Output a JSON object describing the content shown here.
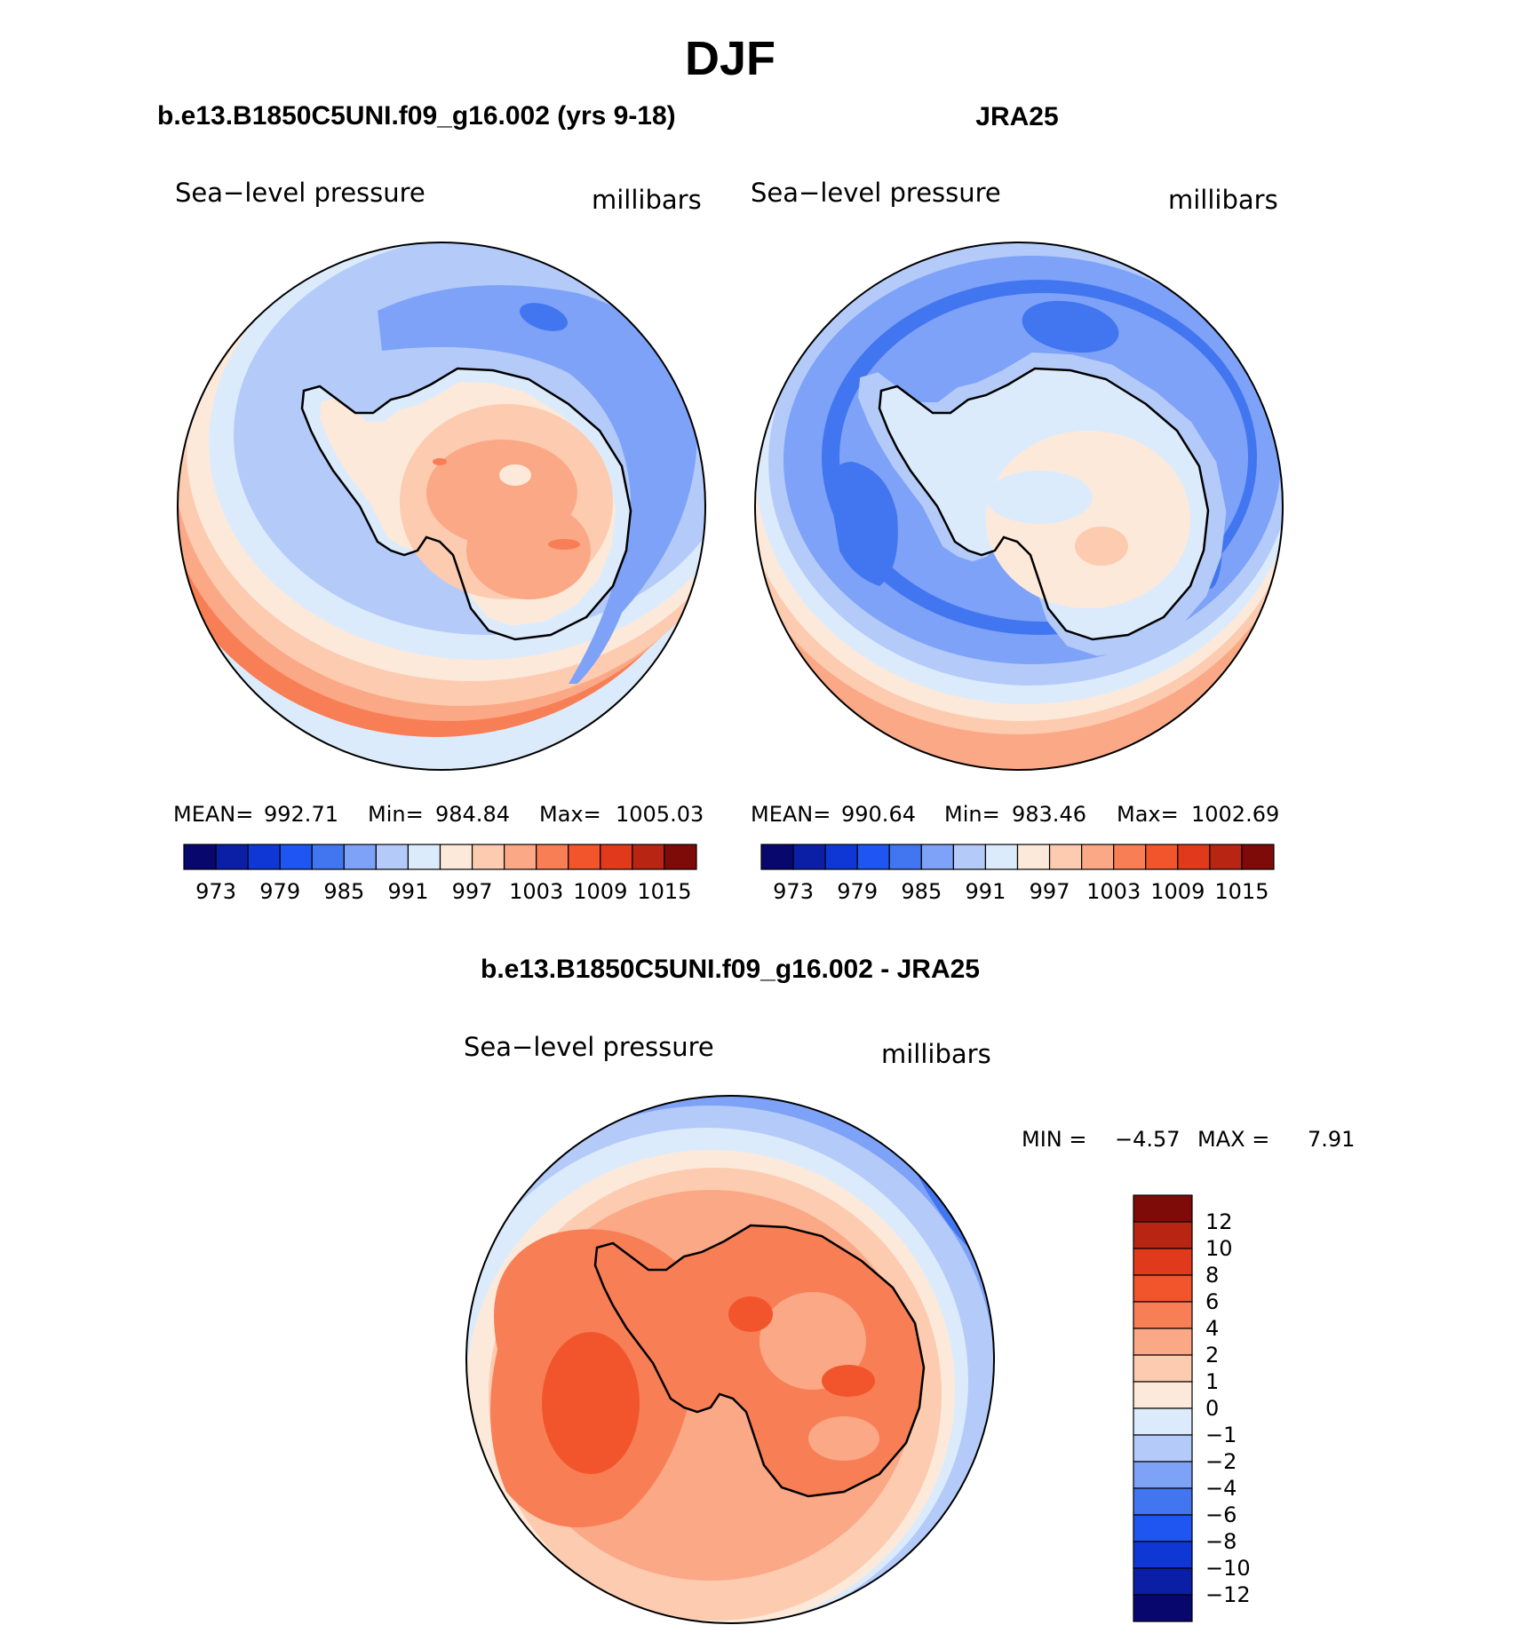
{
  "main_title": "DJF",
  "panels": [
    {
      "id": "model",
      "header": "b.e13.B1850C5UNI.f09_g16.002 (yrs 9-18)",
      "variable": "Sea−level pressure",
      "units": "millibars",
      "stats": {
        "mean_label": "MEAN=",
        "mean": "992.71",
        "min_label": "Min=",
        "min": "984.84",
        "max_label": "Max=",
        "max": "1005.03"
      }
    },
    {
      "id": "obs",
      "header": "JRA25",
      "variable": "Sea−level pressure",
      "units": "millibars",
      "stats": {
        "mean_label": "MEAN=",
        "mean": "990.64",
        "min_label": "Min=",
        "min": "983.46",
        "max_label": "Max=",
        "max": "1002.69"
      }
    }
  ],
  "colorbar_abs": {
    "colors": [
      "#08076e",
      "#0a1fa6",
      "#0f37d6",
      "#1f55f0",
      "#4276f0",
      "#7ea2f7",
      "#b4cbfa",
      "#dcebfb",
      "#fde9da",
      "#fccbb0",
      "#fba886",
      "#f87e55",
      "#f2552b",
      "#e0391c",
      "#b82613",
      "#7f0b08"
    ],
    "labels": [
      "973",
      "979",
      "985",
      "991",
      "997",
      "1003",
      "1009",
      "1015"
    ]
  },
  "diff": {
    "header": "b.e13.B1850C5UNI.f09_g16.002 - JRA25",
    "variable": "Sea−level pressure",
    "units": "millibars",
    "min_label": "MIN =",
    "min": "−4.57",
    "max_label": "MAX =",
    "max": "7.91",
    "colorbar": {
      "colors": [
        "#7f0b08",
        "#b82613",
        "#e0391c",
        "#f2552b",
        "#f87e55",
        "#fba886",
        "#fccbb0",
        "#fde9da",
        "#dcebfb",
        "#b4cbfa",
        "#7ea2f7",
        "#4276f0",
        "#1f55f0",
        "#0f37d6",
        "#0a1fa6",
        "#08076e"
      ],
      "labels": [
        "12",
        "10",
        "8",
        "6",
        "4",
        "2",
        "1",
        "0",
        "−1",
        "−2",
        "−4",
        "−6",
        "−8",
        "−10",
        "−12"
      ]
    }
  }
}
